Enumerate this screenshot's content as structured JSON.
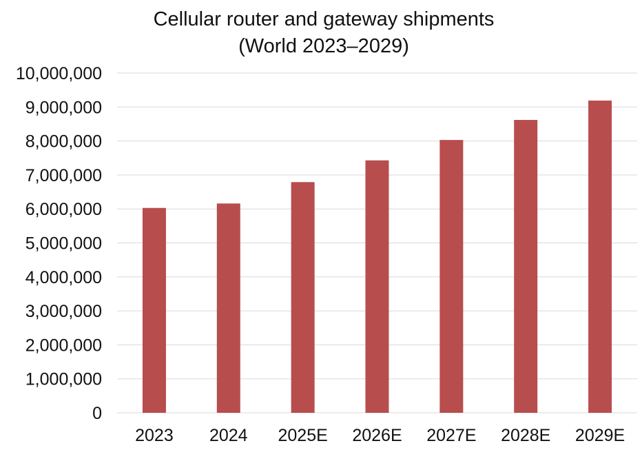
{
  "chart_data": {
    "type": "bar",
    "title_lines": [
      "Cellular router and gateway shipments",
      "(World 2023–2029)"
    ],
    "categories": [
      "2023",
      "2024",
      "2025E",
      "2026E",
      "2027E",
      "2028E",
      "2029E"
    ],
    "values": [
      6030000,
      6160000,
      6790000,
      7430000,
      8030000,
      8620000,
      9190000
    ],
    "ylim": [
      0,
      10000000
    ],
    "yticks": [
      0,
      1000000,
      2000000,
      3000000,
      4000000,
      5000000,
      6000000,
      7000000,
      8000000,
      9000000,
      10000000
    ],
    "ytick_labels": [
      "0",
      "1,000,000",
      "2,000,000",
      "3,000,000",
      "4,000,000",
      "5,000,000",
      "6,000,000",
      "7,000,000",
      "8,000,000",
      "9,000,000",
      "10,000,000"
    ],
    "xlabel": "",
    "ylabel": "",
    "grid": true,
    "legend": "none",
    "bar_color": "#b84d4d"
  }
}
